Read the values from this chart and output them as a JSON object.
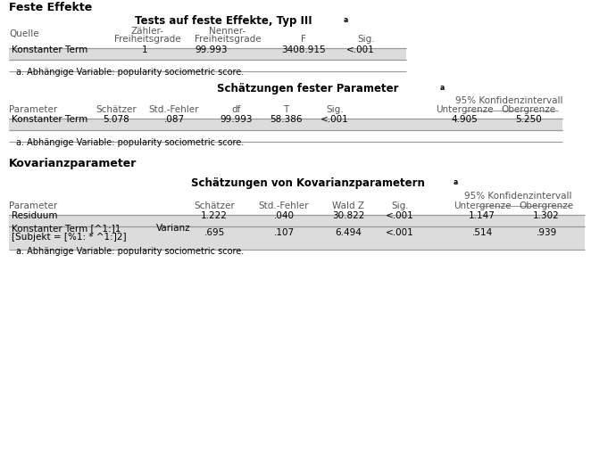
{
  "bg_color": "#ffffff",
  "text_color": "#000000",
  "header_color": "#555555",
  "row_bg": "#dcdcdc",
  "section1_title": "Feste Effekte",
  "table1_title": "Tests auf feste Effekte, Typ III",
  "table1_footnote": "a. Abhängige Variable: popularity sociometric score.",
  "table2_title": "Schätzungen fester Parameter",
  "table2_footnote": "a. Abhängige Variable: popularity sociometric score.",
  "section2_title": "Kovarianzparameter",
  "table3_title": "Schätzungen von Kovarianzparametern",
  "table3_footnote": "a. Abhängige Variable: popularity sociometric score.",
  "t1_row": [
    "Konstanter Term",
    "1",
    "99.993",
    "3408.915",
    "<.001"
  ],
  "t2_row": [
    "Konstanter Term",
    "5.078",
    ".087",
    "99.993",
    "58.386",
    "<.001",
    "4.905",
    "5.250"
  ],
  "t3_row0": [
    "Residuum",
    "1.222",
    ".040",
    "30.822",
    "<.001",
    "1.147",
    "1.302"
  ],
  "t3_row1_a": "Konstanter Term [^1:]1",
  "t3_row1_b": "[Subjekt = [%1: * ^1:]2]",
  "t3_row1_var": "Varianz",
  "t3_row1_vals": [
    ".695",
    ".107",
    "6.494",
    "<.001",
    ".514",
    ".939"
  ]
}
